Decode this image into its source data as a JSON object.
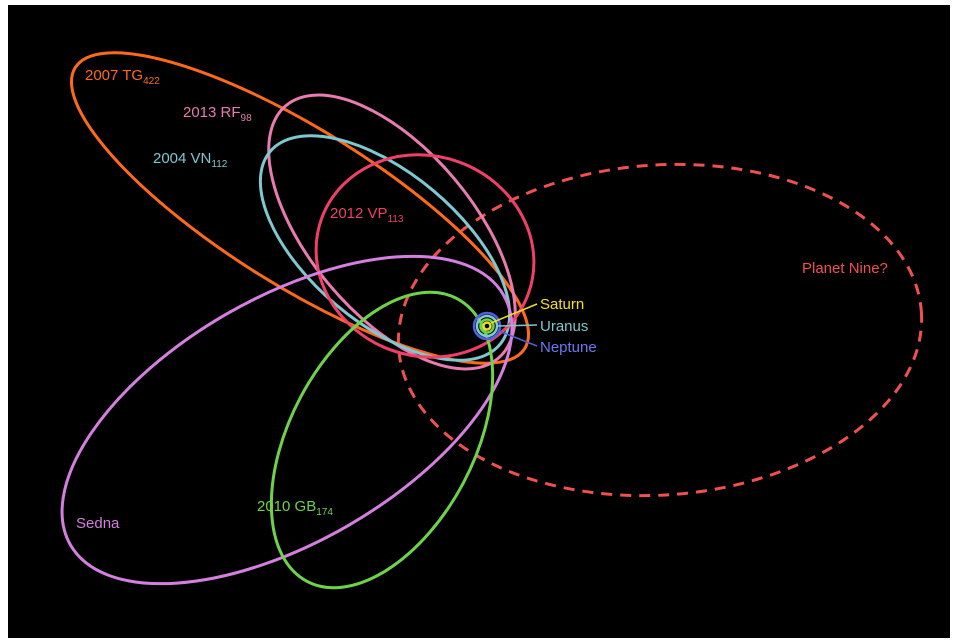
{
  "orbits": [
    {
      "name": "2007 TG",
      "sub": "422"
    },
    {
      "name": "2013 RF",
      "sub": "98"
    },
    {
      "name": "2004 VN",
      "sub": "112"
    },
    {
      "name": "2012 VP",
      "sub": "113"
    },
    {
      "name": "2010 GB",
      "sub": "174"
    },
    {
      "name": "Sedna"
    }
  ],
  "planet_nine": "Planet Nine?",
  "planets": [
    "Saturn",
    "Uranus",
    "Neptune"
  ]
}
